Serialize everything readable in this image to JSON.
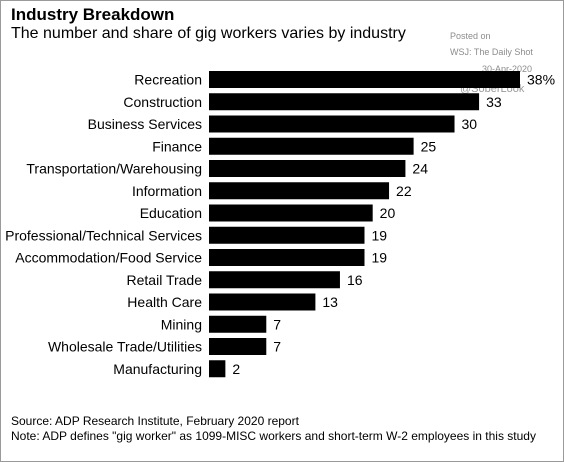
{
  "header": {
    "title": "Industry Breakdown",
    "subtitle": "The number and share of gig workers varies by industry"
  },
  "watermark": {
    "line1": "Posted on",
    "line2": "WSJ: The Daily Shot",
    "line3": "30-Apr-2020",
    "line4": "@SoberLook"
  },
  "footer": {
    "source": "Source: ADP Research Institute, February 2020 report",
    "note": "Note: ADP defines \"gig worker\" as 1099-MISC workers and short-term W-2 employees in this study"
  },
  "colors": {
    "bar": "#000000",
    "text": "#000000",
    "background": "#ffffff"
  },
  "chart_data": {
    "type": "bar",
    "orientation": "horizontal",
    "title": "Industry Breakdown",
    "subtitle": "The number and share of gig workers varies by industry",
    "categories": [
      "Recreation",
      "Construction",
      "Business Services",
      "Finance",
      "Transportation/Warehousing",
      "Information",
      "Education",
      "Professional/Technical Services",
      "Accommodation/Food Service",
      "Retail Trade",
      "Health Care",
      "Mining",
      "Wholesale Trade/Utilities",
      "Manufacturing"
    ],
    "values": [
      38,
      33,
      30,
      25,
      24,
      22,
      20,
      19,
      19,
      16,
      13,
      7,
      7,
      2
    ],
    "value_labels": [
      "38%",
      "33",
      "30",
      "25",
      "24",
      "22",
      "20",
      "19",
      "19",
      "16",
      "13",
      "7",
      "7",
      "2"
    ],
    "xlim": [
      0,
      38
    ],
    "grid": false,
    "legend": false
  }
}
